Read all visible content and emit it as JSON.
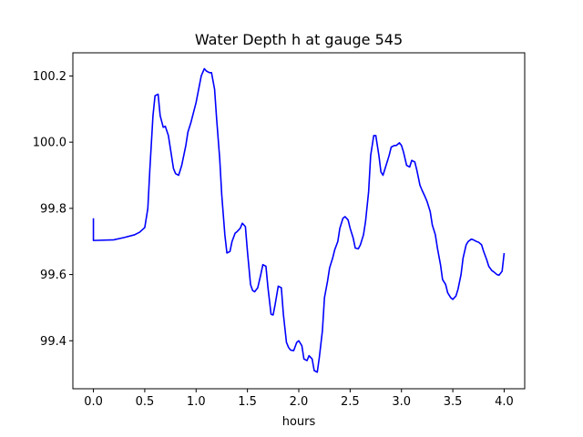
{
  "chart_data": {
    "type": "line",
    "title": "Water Depth h at gauge 545",
    "xlabel": "hours",
    "ylabel": "",
    "xlim": [
      -0.2,
      4.2
    ],
    "ylim": [
      99.255,
      100.27
    ],
    "xticks": [
      0.0,
      0.5,
      1.0,
      1.5,
      2.0,
      2.5,
      3.0,
      3.5,
      4.0
    ],
    "xtick_labels": [
      "0.0",
      "0.5",
      "1.0",
      "1.5",
      "2.0",
      "2.5",
      "3.0",
      "3.5",
      "4.0"
    ],
    "yticks": [
      99.4,
      99.6,
      99.8,
      100.0,
      100.2
    ],
    "ytick_labels": [
      "99.4",
      "99.6",
      "99.8",
      "100.0",
      "100.2"
    ],
    "grid": false,
    "series": [
      {
        "color": "#0000ff",
        "x": [
          0.0,
          0.0,
          0.2,
          0.3,
          0.4,
          0.45,
          0.5,
          0.53,
          0.55,
          0.58,
          0.6,
          0.63,
          0.65,
          0.68,
          0.7,
          0.73,
          0.75,
          0.78,
          0.8,
          0.83,
          0.86,
          0.88,
          0.9,
          0.92,
          0.95,
          1.0,
          1.05,
          1.08,
          1.1,
          1.13,
          1.15,
          1.18,
          1.2,
          1.23,
          1.25,
          1.28,
          1.3,
          1.33,
          1.35,
          1.38,
          1.4,
          1.43,
          1.45,
          1.48,
          1.5,
          1.53,
          1.55,
          1.57,
          1.6,
          1.63,
          1.65,
          1.68,
          1.7,
          1.73,
          1.75,
          1.77,
          1.8,
          1.83,
          1.85,
          1.88,
          1.9,
          1.92,
          1.95,
          1.98,
          2.0,
          2.03,
          2.05,
          2.08,
          2.1,
          2.13,
          2.15,
          2.18,
          2.2,
          2.23,
          2.25,
          2.28,
          2.3,
          2.33,
          2.35,
          2.38,
          2.4,
          2.43,
          2.45,
          2.48,
          2.5,
          2.53,
          2.55,
          2.58,
          2.6,
          2.63,
          2.65,
          2.68,
          2.7,
          2.73,
          2.75,
          2.78,
          2.8,
          2.82,
          2.85,
          2.88,
          2.9,
          2.93,
          2.95,
          2.98,
          3.0,
          3.02,
          3.05,
          3.08,
          3.1,
          3.13,
          3.15,
          3.18,
          3.2,
          3.23,
          3.25,
          3.28,
          3.3,
          3.33,
          3.35,
          3.38,
          3.4,
          3.43,
          3.45,
          3.48,
          3.5,
          3.53,
          3.55,
          3.58,
          3.6,
          3.63,
          3.65,
          3.68,
          3.7,
          3.73,
          3.75,
          3.78,
          3.8,
          3.83,
          3.85,
          3.88,
          3.9,
          3.93,
          3.95,
          3.98,
          4.0
        ],
        "y": [
          99.77,
          99.703,
          99.705,
          99.712,
          99.72,
          99.728,
          99.742,
          99.8,
          99.92,
          100.08,
          100.14,
          100.145,
          100.08,
          100.045,
          100.048,
          100.02,
          99.98,
          99.92,
          99.905,
          99.9,
          99.93,
          99.96,
          99.99,
          100.03,
          100.06,
          100.12,
          100.2,
          100.222,
          100.215,
          100.21,
          100.21,
          100.16,
          100.07,
          99.95,
          99.84,
          99.72,
          99.665,
          99.67,
          99.7,
          99.725,
          99.73,
          99.74,
          99.755,
          99.745,
          99.67,
          99.57,
          99.552,
          99.548,
          99.56,
          99.6,
          99.63,
          99.625,
          99.56,
          99.48,
          99.478,
          99.51,
          99.565,
          99.56,
          99.48,
          99.395,
          99.38,
          99.372,
          99.37,
          99.395,
          99.4,
          99.385,
          99.345,
          99.34,
          99.355,
          99.345,
          99.31,
          99.305,
          99.35,
          99.43,
          99.53,
          99.58,
          99.62,
          99.65,
          99.675,
          99.7,
          99.74,
          99.77,
          99.775,
          99.765,
          99.74,
          99.71,
          99.68,
          99.678,
          99.69,
          99.72,
          99.76,
          99.85,
          99.96,
          100.02,
          100.02,
          99.96,
          99.91,
          99.9,
          99.93,
          99.96,
          99.985,
          99.99,
          99.99,
          99.998,
          99.99,
          99.97,
          99.93,
          99.925,
          99.945,
          99.94,
          99.915,
          99.87,
          99.855,
          99.835,
          99.82,
          99.79,
          99.75,
          99.72,
          99.68,
          99.63,
          99.585,
          99.57,
          99.545,
          99.53,
          99.525,
          99.535,
          99.555,
          99.6,
          99.65,
          99.69,
          99.7,
          99.707,
          99.705,
          99.7,
          99.698,
          99.69,
          99.67,
          99.645,
          99.625,
          99.612,
          99.608,
          99.6,
          99.598,
          99.61,
          99.665
        ]
      }
    ]
  }
}
